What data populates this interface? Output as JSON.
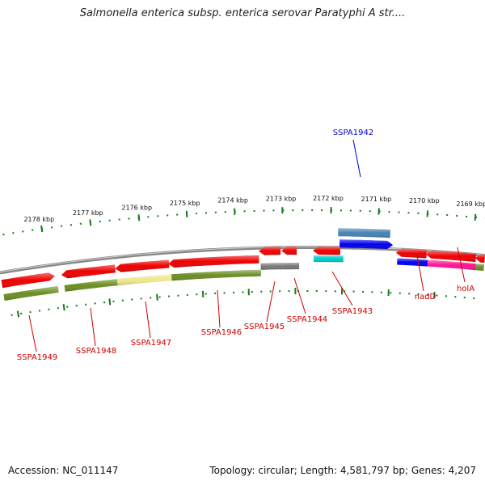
{
  "title": "Salmonella enterica subsp. enterica serovar Paratyphi A str....",
  "footer": {
    "accession": "Accession: NC_011147",
    "topology": "Topology: circular; Length: 4,581,797 bp; Genes: 4,207"
  },
  "colors": {
    "backbone": "#888888",
    "tick": "#1a7a1a",
    "feature_red": "#ee0000",
    "feature_olive": "#6b8e23",
    "feature_pale_yellow": "#f0e68c",
    "feature_grey": "#777777",
    "feature_cyan": "#00cccc",
    "feature_blue": "#0000ee",
    "feature_steelblue": "#4682b4",
    "feature_pink": "#ff1493",
    "label_red": "#cc0000",
    "label_blue": "#0000cc"
  },
  "ruler": {
    "labels": [
      "2178 kbp",
      "2177 kbp",
      "2176 kbp",
      "2175 kbp",
      "2174 kbp",
      "2173 kbp",
      "2172 kbp",
      "2171 kbp",
      "2170 kbp",
      "2169 kbp"
    ]
  },
  "genes": [
    {
      "name": "SSPA1942",
      "color": "blue"
    },
    {
      "name": "SSPA1943",
      "color": "red"
    },
    {
      "name": "SSPA1944",
      "color": "red"
    },
    {
      "name": "SSPA1945",
      "color": "red"
    },
    {
      "name": "SSPA1946",
      "color": "red"
    },
    {
      "name": "SSPA1947",
      "color": "red"
    },
    {
      "name": "SSPA1948",
      "color": "red"
    },
    {
      "name": "SSPA1949",
      "color": "red"
    },
    {
      "name": "nadD",
      "color": "red"
    },
    {
      "name": "holA",
      "color": "red"
    }
  ]
}
